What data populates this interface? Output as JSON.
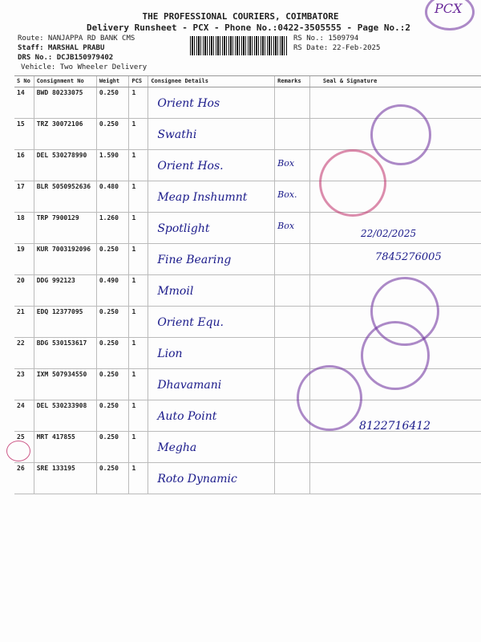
{
  "header": {
    "company": "THE PROFESSIONAL COURIERS, COIMBATORE",
    "subtitle": "Delivery Runsheet - PCX - Phone No.:0422-3505555 - Page No.:2",
    "route": "Route: NANJAPPA RD BANK CMS",
    "staff": "Staff: MARSHAL PRABU",
    "drs": "DRS No.: DCJB150979402",
    "vehicle": "Vehicle: Two Wheeler Delivery",
    "rs_no": "RS No.: 1509794",
    "rs_date": "RS Date: 22-Feb-2025"
  },
  "columns": [
    "S No",
    "Consignment No",
    "Weight",
    "PCS",
    "Consignee Details",
    "Remarks",
    "Seal & Signature"
  ],
  "rows": [
    {
      "sno": "14",
      "cons": "BWD 80233075",
      "weight": "0.250",
      "pcs": "1",
      "consignee": "Orient Hos",
      "remarks": ""
    },
    {
      "sno": "15",
      "cons": "TRZ 30072106",
      "weight": "0.250",
      "pcs": "1",
      "consignee": "Swathi",
      "remarks": ""
    },
    {
      "sno": "16",
      "cons": "DEL 530278990",
      "weight": "1.590",
      "pcs": "1",
      "consignee": "Orient Hos.",
      "remarks": "Box"
    },
    {
      "sno": "17",
      "cons": "BLR 5050952636",
      "weight": "0.480",
      "pcs": "1",
      "consignee": "Meap Inshumnt",
      "remarks": "Box."
    },
    {
      "sno": "18",
      "cons": "TRP 7900129",
      "weight": "1.260",
      "pcs": "1",
      "consignee": "Spotlight",
      "remarks": "Box"
    },
    {
      "sno": "19",
      "cons": "KUR 7003192096",
      "weight": "0.250",
      "pcs": "1",
      "consignee": "Fine Bearing",
      "remarks": ""
    },
    {
      "sno": "20",
      "cons": "DDG 992123",
      "weight": "0.490",
      "pcs": "1",
      "consignee": "Mmoil",
      "remarks": ""
    },
    {
      "sno": "21",
      "cons": "EDQ 12377095",
      "weight": "0.250",
      "pcs": "1",
      "consignee": "Orient Equ.",
      "remarks": ""
    },
    {
      "sno": "22",
      "cons": "BDG 530153617",
      "weight": "0.250",
      "pcs": "1",
      "consignee": "Lion",
      "remarks": ""
    },
    {
      "sno": "23",
      "cons": "IXM 507934550",
      "weight": "0.250",
      "pcs": "1",
      "consignee": "Dhavamani",
      "remarks": ""
    },
    {
      "sno": "24",
      "cons": "DEL 530233908",
      "weight": "0.250",
      "pcs": "1",
      "consignee": "Auto Point",
      "remarks": ""
    },
    {
      "sno": "25",
      "cons": "MRT 417855",
      "weight": "0.250",
      "pcs": "1",
      "consignee": "Megha",
      "remarks": ""
    },
    {
      "sno": "26",
      "cons": "SRE 133195",
      "weight": "0.250",
      "pcs": "1",
      "consignee": "Roto Dynamic",
      "remarks": ""
    }
  ],
  "signatures": {
    "stamp_pcx": "PCX",
    "phone_sig": "8122716412",
    "date_sig": "22/02/2025",
    "num_sig": "7845276005"
  },
  "colors": {
    "ink": "#1a1a8a",
    "stamp_purple": "#6a2a9a",
    "stamp_pink": "#c0306a"
  }
}
